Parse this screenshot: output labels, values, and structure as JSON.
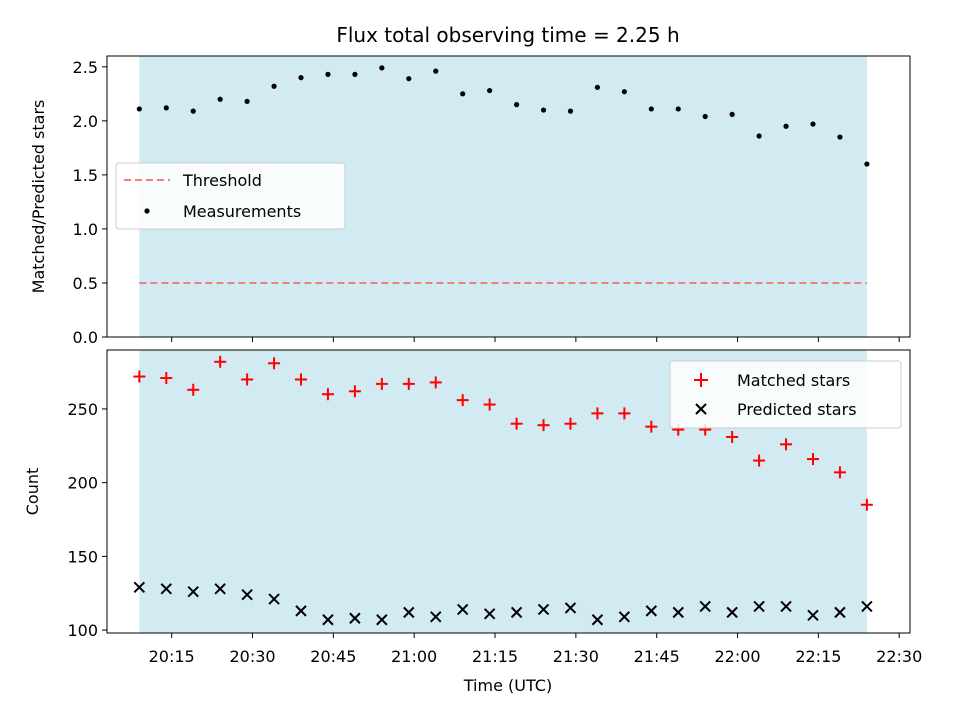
{
  "chart_data": [
    {
      "type": "scatter",
      "title": "Flux total observing time = 2.25 h",
      "xlabel": "",
      "ylabel": "Matched/Predicted stars",
      "xlim": [
        "20:03",
        "22:32"
      ],
      "ylim": [
        0,
        2.6
      ],
      "yticks": [
        0.0,
        0.5,
        1.0,
        1.5,
        2.0,
        2.5
      ],
      "shaded_span": [
        "20:09",
        "22:24"
      ],
      "shade_color": "#add8e6",
      "legend_placement": "center-left",
      "threshold": {
        "name": "Threshold",
        "value": 0.5,
        "color": "#f08080",
        "style": "dashed"
      },
      "series": [
        {
          "name": "Measurements",
          "color": "#000000",
          "marker": "dot",
          "x": [
            "20:09",
            "20:14",
            "20:19",
            "20:24",
            "20:29",
            "20:34",
            "20:39",
            "20:44",
            "20:49",
            "20:54",
            "20:59",
            "21:04",
            "21:09",
            "21:14",
            "21:19",
            "21:24",
            "21:29",
            "21:34",
            "21:39",
            "21:44",
            "21:49",
            "21:54",
            "21:59",
            "22:04",
            "22:09",
            "22:14",
            "22:19",
            "22:24"
          ],
          "values": [
            2.11,
            2.12,
            2.09,
            2.2,
            2.18,
            2.32,
            2.4,
            2.43,
            2.43,
            2.49,
            2.39,
            2.46,
            2.25,
            2.28,
            2.15,
            2.1,
            2.09,
            2.31,
            2.27,
            2.11,
            2.11,
            2.04,
            2.06,
            1.86,
            1.95,
            1.97,
            1.85,
            1.6
          ]
        }
      ]
    },
    {
      "type": "scatter",
      "title": "",
      "xlabel": "Time (UTC)",
      "ylabel": "Count",
      "xlim": [
        "20:03",
        "22:32"
      ],
      "ylim": [
        98,
        290
      ],
      "yticks": [
        100,
        150,
        200,
        250
      ],
      "xticks": [
        "20:15",
        "20:30",
        "20:45",
        "21:00",
        "21:15",
        "21:30",
        "21:45",
        "22:00",
        "22:15",
        "22:30"
      ],
      "shaded_span": [
        "20:09",
        "22:24"
      ],
      "shade_color": "#add8e6",
      "legend_placement": "upper-right",
      "series": [
        {
          "name": "Matched stars",
          "color": "#ff0000",
          "marker": "plus",
          "x": [
            "20:09",
            "20:14",
            "20:19",
            "20:24",
            "20:29",
            "20:34",
            "20:39",
            "20:44",
            "20:49",
            "20:54",
            "20:59",
            "21:04",
            "21:09",
            "21:14",
            "21:19",
            "21:24",
            "21:29",
            "21:34",
            "21:39",
            "21:44",
            "21:49",
            "21:54",
            "21:59",
            "22:04",
            "22:09",
            "22:14",
            "22:19",
            "22:24"
          ],
          "values": [
            272,
            271,
            263,
            282,
            270,
            281,
            270,
            260,
            262,
            267,
            267,
            268,
            256,
            253,
            240,
            239,
            240,
            247,
            247,
            238,
            236,
            236,
            231,
            215,
            226,
            216,
            207,
            185
          ]
        },
        {
          "name": "Predicted stars",
          "color": "#000000",
          "marker": "x",
          "x": [
            "20:09",
            "20:14",
            "20:19",
            "20:24",
            "20:29",
            "20:34",
            "20:39",
            "20:44",
            "20:49",
            "20:54",
            "20:59",
            "21:04",
            "21:09",
            "21:14",
            "21:19",
            "21:24",
            "21:29",
            "21:34",
            "21:39",
            "21:44",
            "21:49",
            "21:54",
            "21:59",
            "22:04",
            "22:09",
            "22:14",
            "22:19",
            "22:24"
          ],
          "values": [
            129,
            128,
            126,
            128,
            124,
            121,
            113,
            107,
            108,
            107,
            112,
            109,
            114,
            111,
            112,
            114,
            115,
            107,
            109,
            113,
            112,
            116,
            112,
            116,
            116,
            110,
            112,
            116
          ]
        }
      ]
    }
  ]
}
